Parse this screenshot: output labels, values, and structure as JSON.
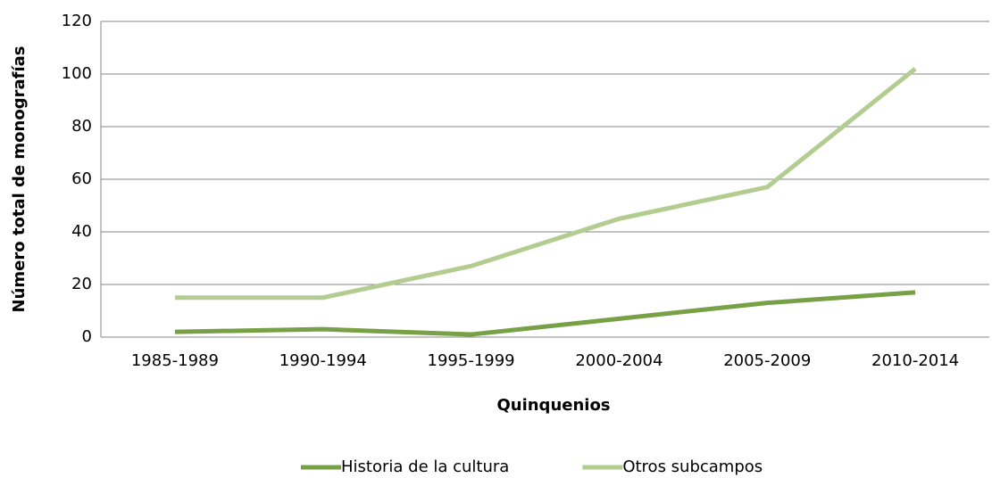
{
  "chart_data": {
    "type": "line",
    "x_label": "Quinquenios",
    "y_label": "Número total de monografías",
    "categories": [
      "1985-1989",
      "1990-1994",
      "1995-1999",
      "2000-2004",
      "2005-2009",
      "2010-2014"
    ],
    "series": [
      {
        "name": "Historia de la cultura",
        "color": "#77a047",
        "values": [
          2,
          3,
          1,
          7,
          13,
          17
        ]
      },
      {
        "name": "Otros subcampos",
        "color": "#b3cc8f",
        "values": [
          15,
          15,
          27,
          45,
          57,
          102
        ]
      }
    ],
    "ylim": [
      0,
      120
    ],
    "yticks": [
      0,
      20,
      40,
      60,
      80,
      100,
      120
    ],
    "grid": true,
    "legend": "bottom"
  }
}
